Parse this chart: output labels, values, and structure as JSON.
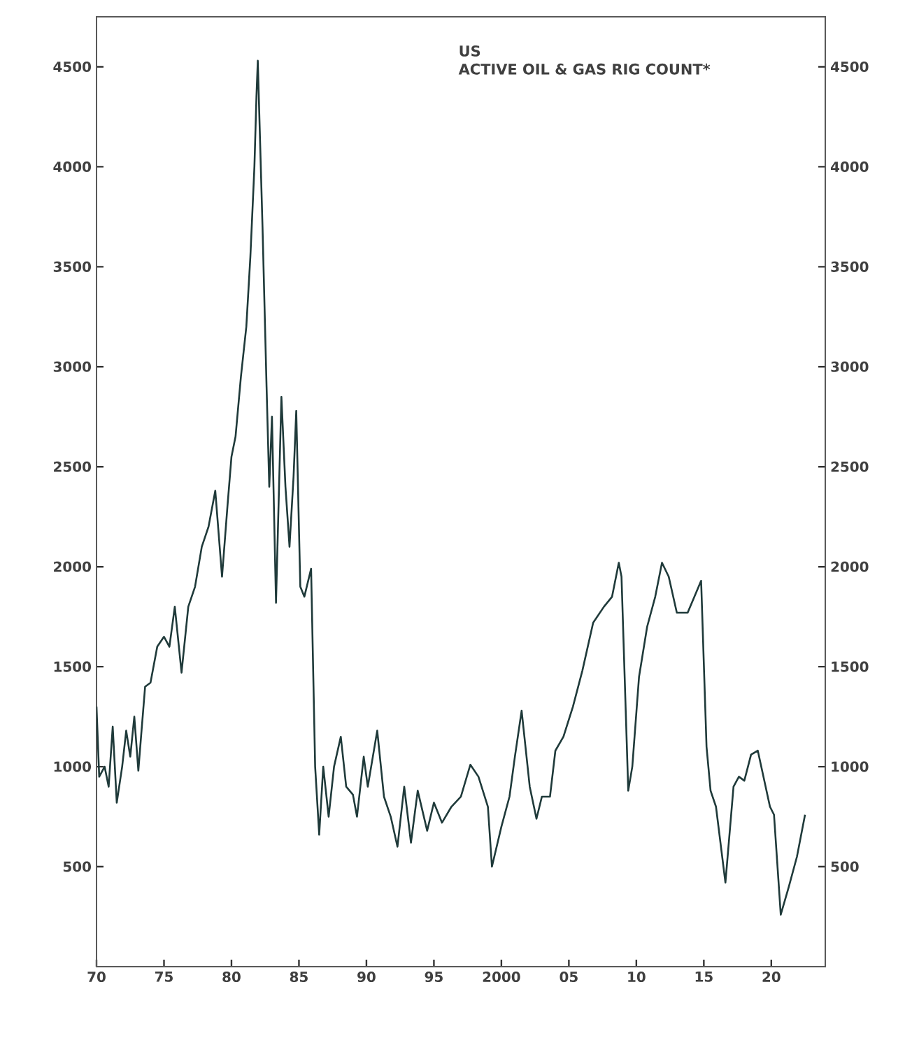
{
  "chart_data": {
    "type": "line",
    "title": "US",
    "subtitle": "ACTIVE OIL & GAS RIG COUNT*",
    "x": [
      1970.0,
      1970.2,
      1970.6,
      1970.9,
      1971.2,
      1971.5,
      1971.9,
      1972.2,
      1972.5,
      1972.8,
      1973.1,
      1973.3,
      1973.6,
      1974.0,
      1974.5,
      1975.0,
      1975.4,
      1975.8,
      1976.3,
      1976.8,
      1977.3,
      1977.8,
      1978.3,
      1978.8,
      1979.3,
      1979.7,
      1980.0,
      1980.3,
      1980.7,
      1981.1,
      1981.4,
      1981.7,
      1981.85,
      1981.95,
      1982.3,
      1982.6,
      1982.8,
      1983.0,
      1983.3,
      1983.7,
      1984.0,
      1984.3,
      1984.6,
      1984.8,
      1985.1,
      1985.4,
      1985.9,
      1986.2,
      1986.5,
      1986.8,
      1987.2,
      1987.6,
      1988.1,
      1988.5,
      1989.0,
      1989.3,
      1989.8,
      1990.1,
      1990.8,
      1991.3,
      1991.8,
      1992.3,
      1992.8,
      1993.3,
      1993.8,
      1994.5,
      1995.0,
      1995.6,
      1996.3,
      1997.0,
      1997.7,
      1998.3,
      1999.0,
      1999.3,
      2000.0,
      2000.6,
      2001.0,
      2001.5,
      2002.1,
      2002.6,
      2003.0,
      2003.6,
      2004.0,
      2004.6,
      2005.3,
      2006.0,
      2006.8,
      2007.6,
      2008.2,
      2008.7,
      2008.9,
      2009.4,
      2009.7,
      2010.2,
      2010.8,
      2011.4,
      2011.9,
      2012.4,
      2013.0,
      2013.8,
      2014.8,
      2015.2,
      2015.5,
      2015.9,
      2016.6,
      2017.2,
      2017.6,
      2018.0,
      2018.5,
      2019.0,
      2019.9,
      2020.2,
      2020.7,
      2021.3,
      2021.9,
      2022.5
    ],
    "series": [
      {
        "color": "#1f3a3a",
        "values": [
          1300,
          950,
          1000,
          900,
          1200,
          820,
          1000,
          1180,
          1050,
          1250,
          980,
          1150,
          1400,
          1420,
          1600,
          1650,
          1600,
          1800,
          1470,
          1800,
          1900,
          2100,
          2200,
          2380,
          1950,
          2300,
          2550,
          2650,
          2950,
          3200,
          3550,
          4000,
          4350,
          4530,
          3700,
          2900,
          2400,
          2750,
          1820,
          2850,
          2400,
          2100,
          2450,
          2780,
          1900,
          1850,
          1990,
          1000,
          660,
          1000,
          750,
          1000,
          1150,
          900,
          860,
          750,
          1050,
          900,
          1180,
          850,
          750,
          600,
          900,
          620,
          880,
          680,
          820,
          720,
          800,
          850,
          1010,
          950,
          800,
          500,
          700,
          850,
          1050,
          1280,
          900,
          740,
          850,
          850,
          1080,
          1150,
          1300,
          1480,
          1720,
          1800,
          1850,
          2020,
          1950,
          880,
          1000,
          1450,
          1700,
          1850,
          2020,
          1950,
          1770,
          1770,
          1930,
          1100,
          880,
          800,
          420,
          900,
          950,
          930,
          1060,
          1080,
          800,
          760,
          260,
          400,
          550,
          760
        ]
      }
    ],
    "xlim": [
      1970,
      2024
    ],
    "xticks": [
      {
        "value": 1970,
        "label": "70"
      },
      {
        "value": 1975,
        "label": "75"
      },
      {
        "value": 1980,
        "label": "80"
      },
      {
        "value": 1985,
        "label": "85"
      },
      {
        "value": 1990,
        "label": "90"
      },
      {
        "value": 1995,
        "label": "95"
      },
      {
        "value": 2000,
        "label": "2000"
      },
      {
        "value": 2005,
        "label": "05"
      },
      {
        "value": 2010,
        "label": "10"
      },
      {
        "value": 2015,
        "label": "15"
      },
      {
        "value": 2020,
        "label": "20"
      }
    ],
    "ylim": [
      0,
      4750
    ],
    "yticks": [
      500,
      1000,
      1500,
      2000,
      2500,
      3000,
      3500,
      4000,
      4500
    ],
    "y2lim": [
      0,
      4750
    ],
    "y2ticks": [
      500,
      1000,
      1500,
      2000,
      2500,
      3000,
      3500,
      4000,
      4500
    ],
    "grid": false,
    "marker": "none",
    "line_style": "solid"
  }
}
